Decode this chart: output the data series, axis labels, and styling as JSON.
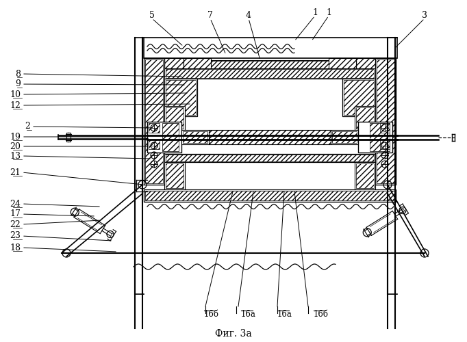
{
  "fig_caption": "Фиг. 3а",
  "bg_color": "#ffffff",
  "line_color": "#000000",
  "top_labels": [
    [
      "5",
      222,
      22,
      268,
      68
    ],
    [
      "7",
      307,
      22,
      330,
      80
    ],
    [
      "4",
      363,
      22,
      380,
      88
    ],
    [
      "1",
      460,
      18,
      430,
      60
    ],
    [
      "1",
      480,
      18,
      455,
      60
    ],
    [
      "3",
      620,
      22,
      575,
      72
    ]
  ],
  "left_labels": [
    [
      "8",
      30,
      108,
      268,
      112
    ],
    [
      "9",
      30,
      123,
      272,
      124
    ],
    [
      "10",
      30,
      138,
      276,
      136
    ],
    [
      "12",
      30,
      154,
      280,
      152
    ],
    [
      "2",
      44,
      185,
      225,
      187
    ],
    [
      "19",
      30,
      200,
      215,
      200
    ],
    [
      "20",
      30,
      214,
      218,
      214
    ],
    [
      "13",
      30,
      228,
      222,
      232
    ],
    [
      "21",
      30,
      252,
      210,
      270
    ],
    [
      "24",
      30,
      298,
      148,
      302
    ],
    [
      "17",
      30,
      313,
      140,
      316
    ],
    [
      "22",
      30,
      328,
      148,
      322
    ],
    [
      "23",
      30,
      345,
      165,
      352
    ],
    [
      "18",
      30,
      362,
      172,
      368
    ]
  ],
  "bottom_labels": [
    [
      "16б",
      298,
      453
    ],
    [
      "16а",
      352,
      453
    ],
    [
      "16а",
      405,
      453
    ],
    [
      "16б",
      458,
      453
    ]
  ]
}
